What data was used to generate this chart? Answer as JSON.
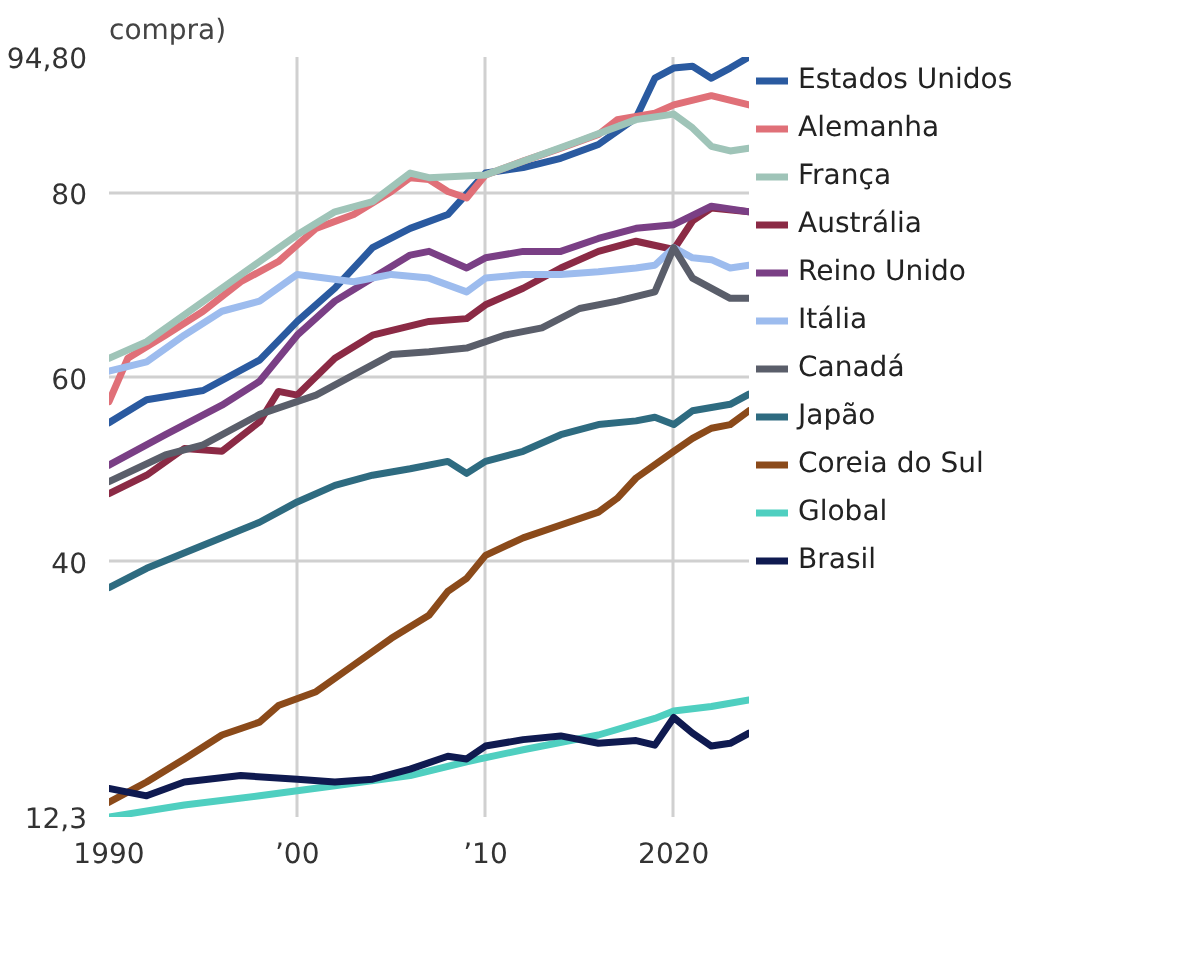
{
  "chart_data": {
    "type": "line",
    "title": "compra)",
    "xlim": [
      1990,
      2024
    ],
    "ylim": [
      12.3,
      94.8
    ],
    "xticks": [
      1990,
      {
        "value": 2000,
        "label": "’00"
      },
      {
        "value": 2010,
        "label": "’10"
      },
      2020
    ],
    "yticks": [
      {
        "value": 12.3,
        "label": "12,3"
      },
      40,
      60,
      80,
      {
        "value": 94.8,
        "label": "94,80"
      }
    ],
    "grid": true,
    "legend": "right",
    "series": [
      {
        "name": "Estados Unidos",
        "color": "#2a5aa0",
        "x": [
          1990,
          1992,
          1995,
          1998,
          2000,
          2002,
          2004,
          2006,
          2008,
          2010,
          2012,
          2014,
          2016,
          2018,
          2019,
          2020,
          2021,
          2022,
          2023,
          2024
        ],
        "values": [
          55.1,
          57.6,
          58.6,
          61.9,
          66.1,
          69.7,
          74.1,
          76.2,
          77.7,
          82.2,
          82.8,
          83.8,
          85.3,
          88.2,
          92.5,
          93.6,
          93.8,
          92.5,
          93.6,
          94.8
        ]
      },
      {
        "name": "Alemanha",
        "color": "#e07078",
        "x": [
          1990,
          1991,
          1993,
          1995,
          1997,
          1999,
          2001,
          2003,
          2005,
          2006,
          2007,
          2008,
          2009,
          2010,
          2012,
          2014,
          2016,
          2017,
          2019,
          2020,
          2022,
          2024
        ],
        "values": [
          57.4,
          62.1,
          64.6,
          67.2,
          70.4,
          72.6,
          76.2,
          77.7,
          80.2,
          81.7,
          81.5,
          80.2,
          79.5,
          82,
          83.5,
          84.9,
          86.4,
          88,
          88.7,
          89.6,
          90.6,
          89.6
        ]
      },
      {
        "name": "França",
        "color": "#9fc4b8",
        "x": [
          1990,
          1992,
          2000,
          2002,
          2004,
          2006,
          2007,
          2010,
          2015,
          2018,
          2020,
          2021,
          2022,
          2023,
          2024
        ],
        "values": [
          62.1,
          63.9,
          75.5,
          78,
          79.1,
          82.2,
          81.7,
          82,
          85.7,
          88,
          88.6,
          87.1,
          85.1,
          84.6,
          84.9
        ]
      },
      {
        "name": "Austrália",
        "color": "#8b2a45",
        "x": [
          1990,
          1992,
          1994,
          1996,
          1998,
          1999,
          2000,
          2002,
          2004,
          2007,
          2009,
          2010,
          2012,
          2014,
          2016,
          2018,
          2020,
          2021,
          2022,
          2024
        ],
        "values": [
          47.4,
          49.4,
          52.3,
          52,
          55.2,
          58.5,
          58.1,
          62.1,
          64.6,
          66.1,
          66.4,
          67.9,
          69.7,
          71.9,
          73.7,
          74.8,
          73.9,
          77,
          78.4,
          78
        ]
      },
      {
        "name": "Reino Unido",
        "color": "#7a3f85",
        "x": [
          1990,
          1993,
          1996,
          1998,
          2000,
          2002,
          2004,
          2006,
          2007,
          2009,
          2010,
          2012,
          2014,
          2016,
          2018,
          2020,
          2022,
          2024
        ],
        "values": [
          50.5,
          53.8,
          57,
          59.6,
          64.6,
          68.3,
          70.8,
          73.3,
          73.7,
          71.9,
          73,
          73.7,
          73.7,
          75.1,
          76.2,
          76.6,
          78.6,
          78
        ]
      },
      {
        "name": "Itália",
        "color": "#9dbcee",
        "x": [
          1990,
          1992,
          1994,
          1996,
          1998,
          2000,
          2003,
          2005,
          2007,
          2009,
          2010,
          2012,
          2014,
          2016,
          2018,
          2019,
          2020,
          2021,
          2022,
          2023,
          2024
        ],
        "values": [
          60.7,
          61.7,
          64.6,
          67.2,
          68.3,
          71.2,
          70.4,
          71.2,
          70.8,
          69.3,
          70.8,
          71.2,
          71.2,
          71.5,
          71.9,
          72.2,
          74.1,
          73,
          72.8,
          71.9,
          72.2
        ]
      },
      {
        "name": "Canadá",
        "color": "#5a5e6a",
        "x": [
          1990,
          1993,
          1995,
          1998,
          2001,
          2003,
          2005,
          2007,
          2009,
          2011,
          2013,
          2015,
          2017,
          2019,
          2020,
          2021,
          2023,
          2024
        ],
        "values": [
          48.7,
          51.6,
          52.7,
          56,
          58.1,
          60.3,
          62.5,
          62.8,
          63.2,
          64.6,
          65.4,
          67.5,
          68.3,
          69.3,
          74.1,
          70.8,
          68.6,
          68.6
        ]
      },
      {
        "name": "Japão",
        "color": "#2e6b80",
        "x": [
          1990,
          1992,
          1995,
          1998,
          2000,
          2002,
          2004,
          2006,
          2008,
          2009,
          2010,
          2012,
          2014,
          2016,
          2018,
          2019,
          2020,
          2021,
          2023,
          2024
        ],
        "values": [
          37.2,
          39.3,
          41.8,
          44.3,
          46.5,
          48.3,
          49.4,
          50.1,
          50.9,
          49.6,
          50.9,
          52,
          53.8,
          54.9,
          55.3,
          55.7,
          54.9,
          56.4,
          57.1,
          58.2
        ]
      },
      {
        "name": "Coreia do Sul",
        "color": "#8b4a1a",
        "x": [
          1990,
          1992,
          1994,
          1996,
          1998,
          1999,
          2001,
          2003,
          2005,
          2007,
          2008,
          2009,
          2010,
          2012,
          2014,
          2016,
          2017,
          2018,
          2020,
          2021,
          2022,
          2023,
          2024
        ],
        "values": [
          13.9,
          16.1,
          18.6,
          21.2,
          22.6,
          24.4,
          25.9,
          28.8,
          31.7,
          34.2,
          36.8,
          38.2,
          40.7,
          42.6,
          44,
          45.4,
          46.9,
          49.1,
          52,
          53.4,
          54.5,
          54.9,
          56.4
        ]
      },
      {
        "name": "Global",
        "color": "#4fcfc0",
        "x": [
          1990,
          1994,
          1998,
          2002,
          2006,
          2009,
          2012,
          2016,
          2019,
          2020,
          2022,
          2024
        ],
        "values": [
          12.3,
          13.6,
          14.6,
          15.7,
          16.8,
          18.3,
          19.6,
          21.2,
          23,
          23.8,
          24.3,
          25
        ]
      },
      {
        "name": "Brasil",
        "color": "#0f1a50",
        "x": [
          1990,
          1992,
          1994,
          1997,
          2000,
          2002,
          2004,
          2006,
          2008,
          2009,
          2010,
          2012,
          2014,
          2016,
          2018,
          2019,
          2020,
          2021,
          2022,
          2023,
          2024
        ],
        "values": [
          15.4,
          14.6,
          16.1,
          16.8,
          16.4,
          16.1,
          16.4,
          17.5,
          18.9,
          18.6,
          20,
          20.7,
          21.1,
          20.3,
          20.6,
          20.1,
          23.1,
          21.4,
          20,
          20.3,
          21.4
        ]
      }
    ]
  }
}
